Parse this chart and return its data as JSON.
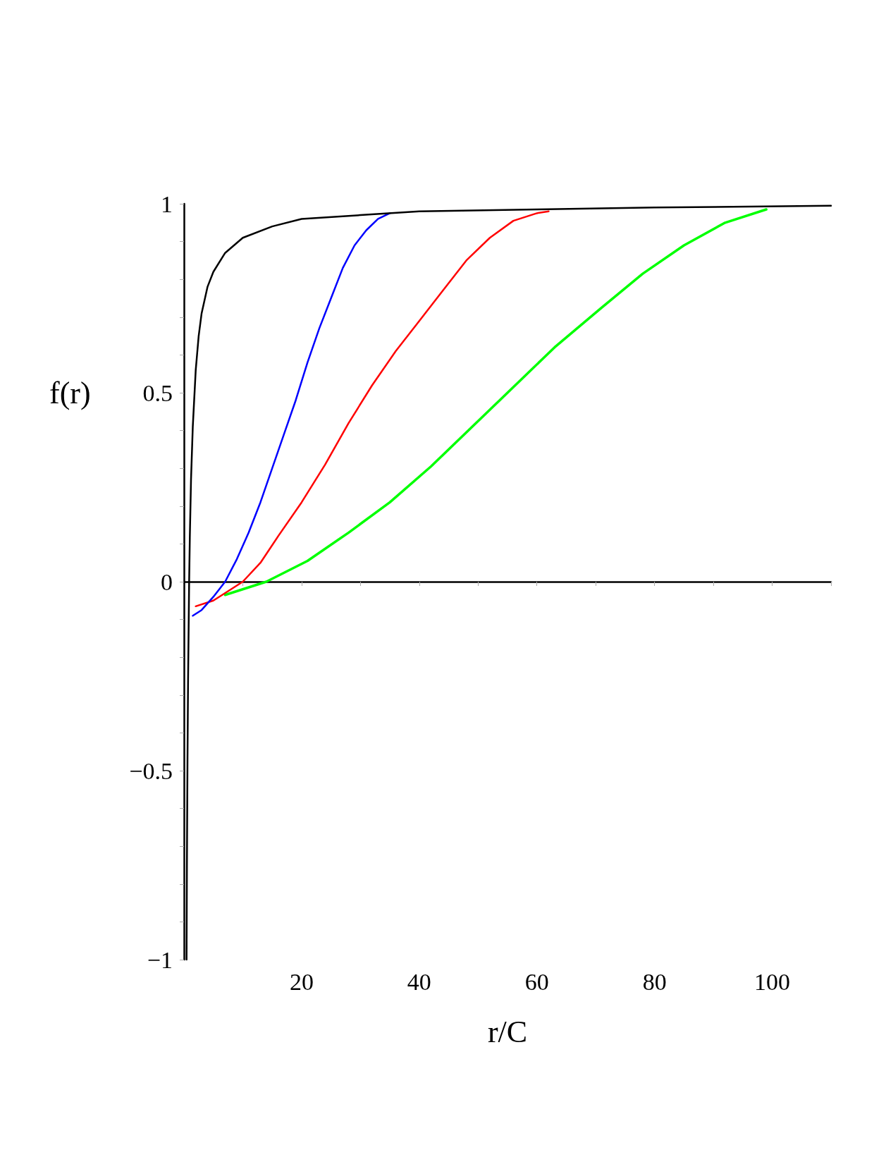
{
  "chart_data": {
    "type": "line",
    "xlabel": "r/C",
    "ylabel": "f(r)",
    "xlim": [
      0,
      110
    ],
    "ylim": [
      -1,
      1
    ],
    "xticks": [
      {
        "value": 10,
        "label": null
      },
      20,
      {
        "value": 30,
        "label": null
      },
      40,
      {
        "value": 50,
        "label": null
      },
      60,
      {
        "value": 70,
        "label": null
      },
      80,
      {
        "value": 90,
        "label": null
      },
      100,
      {
        "value": 110,
        "label": null
      }
    ],
    "yticks": [
      {
        "value": -1,
        "label": "−1"
      },
      {
        "value": -0.9,
        "label": null
      },
      {
        "value": -0.8,
        "label": null
      },
      {
        "value": -0.7,
        "label": null
      },
      {
        "value": -0.6,
        "label": null
      },
      {
        "value": -0.5,
        "label": "−0.5"
      },
      {
        "value": -0.4,
        "label": null
      },
      {
        "value": -0.3,
        "label": null
      },
      {
        "value": -0.2,
        "label": null
      },
      {
        "value": -0.1,
        "label": null
      },
      0,
      {
        "value": 0.1,
        "label": null
      },
      {
        "value": 0.2,
        "label": null
      },
      {
        "value": 0.3,
        "label": null
      },
      {
        "value": 0.4,
        "label": null
      },
      0.5,
      {
        "value": 0.6,
        "label": null
      },
      {
        "value": 0.7,
        "label": null
      },
      {
        "value": 0.8,
        "label": null
      },
      {
        "value": 0.9,
        "label": null
      },
      1
    ],
    "series": [
      {
        "color": "#000000",
        "x": [
          0.44,
          0.5,
          0.6,
          0.7,
          0.88,
          1,
          1.2,
          1.5,
          2,
          2.5,
          3,
          4,
          5,
          7,
          10,
          15,
          20,
          30,
          40,
          60,
          80,
          110
        ],
        "values": [
          -1,
          -0.76,
          -0.47,
          -0.26,
          0,
          0.12,
          0.27,
          0.41,
          0.56,
          0.65,
          0.71,
          0.78,
          0.82,
          0.87,
          0.91,
          0.94,
          0.96,
          0.97,
          0.98,
          0.985,
          0.99,
          0.995
        ]
      },
      {
        "color": "#0000ff",
        "x": [
          1.5,
          3,
          5,
          7,
          9,
          11,
          13,
          15,
          17,
          19,
          21,
          23,
          25,
          27,
          29,
          31,
          33,
          35
        ],
        "values": [
          -0.09,
          -0.075,
          -0.04,
          0,
          0.06,
          0.13,
          0.21,
          0.3,
          0.39,
          0.48,
          0.58,
          0.67,
          0.75,
          0.83,
          0.89,
          0.93,
          0.96,
          0.975
        ]
      },
      {
        "color": "#ff0000",
        "x": [
          2,
          5,
          8,
          10,
          13,
          16,
          20,
          24,
          28,
          32,
          36,
          40,
          44,
          48,
          52,
          56,
          60,
          62
        ],
        "values": [
          -0.065,
          -0.05,
          -0.02,
          0,
          0.05,
          0.12,
          0.21,
          0.31,
          0.42,
          0.52,
          0.61,
          0.69,
          0.77,
          0.85,
          0.91,
          0.955,
          0.975,
          0.98
        ]
      },
      {
        "color": "#00ff00",
        "x": [
          7,
          14,
          21,
          28,
          35,
          42,
          49,
          56,
          63,
          71,
          78,
          85,
          92,
          99
        ],
        "values": [
          -0.035,
          0,
          0.055,
          0.13,
          0.21,
          0.305,
          0.41,
          0.515,
          0.62,
          0.725,
          0.815,
          0.89,
          0.95,
          0.985
        ]
      }
    ]
  }
}
